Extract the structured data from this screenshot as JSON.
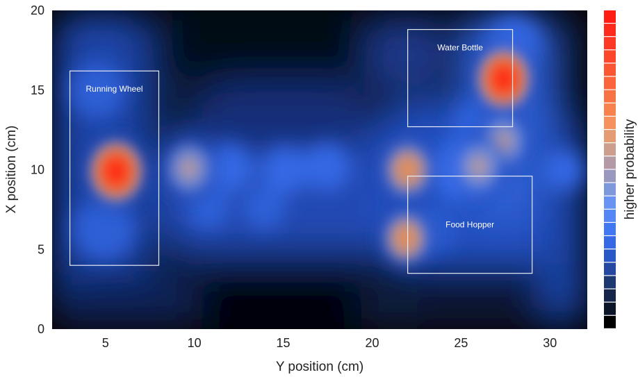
{
  "chart_data": {
    "type": "heatmap",
    "title": "",
    "xlabel": "Y position (cm)",
    "ylabel": "X position (cm)",
    "xlim": [
      2,
      32.1
    ],
    "ylim": [
      0,
      20
    ],
    "x_ticks": [
      5,
      10,
      15,
      20,
      25,
      30
    ],
    "y_ticks": [
      0,
      5,
      10,
      15,
      20
    ],
    "x_tick_labels": [
      "5",
      "10",
      "15",
      "20",
      "25",
      "30"
    ],
    "y_tick_labels": [
      "0",
      "5",
      "10",
      "15",
      "20"
    ],
    "grid": false,
    "colorbar": {
      "label": "higher probability",
      "colors": [
        "#000000",
        "#0c1428",
        "#16264a",
        "#1e3970",
        "#2549a0",
        "#2a58c6",
        "#3468e4",
        "#4277f2",
        "#5486f6",
        "#6893f2",
        "#7e98dc",
        "#9a98be",
        "#b49aa6",
        "#cc9e8e",
        "#e49c74",
        "#f4915c",
        "#f7824e",
        "#f87344",
        "#fa653c",
        "#fb5634",
        "#fc472c",
        "#fd3824",
        "#fe2a1c",
        "#ff1c14"
      ]
    },
    "hotspots": [
      {
        "x": 5.6,
        "y": 9.9,
        "intensity": 1.0
      },
      {
        "x": 27.4,
        "y": 15.7,
        "intensity": 0.95
      },
      {
        "x": 22.0,
        "y": 10.0,
        "intensity": 0.7
      },
      {
        "x": 21.9,
        "y": 5.7,
        "intensity": 0.6
      },
      {
        "x": 9.7,
        "y": 10.1,
        "intensity": 0.55
      },
      {
        "x": 27.4,
        "y": 11.8,
        "intensity": 0.45
      },
      {
        "x": 26.0,
        "y": 10.2,
        "intensity": 0.45
      }
    ],
    "regions": [
      {
        "label": "Running Wheel",
        "x0": 3.0,
        "x1": 8.0,
        "y0": 4.0,
        "y1": 16.2
      },
      {
        "label": "Water Bottle",
        "x0": 22.0,
        "x1": 27.9,
        "y0": 12.7,
        "y1": 18.8
      },
      {
        "label": "Food Hopper",
        "x0": 22.0,
        "x1": 29.0,
        "y0": 3.5,
        "y1": 9.6
      }
    ]
  }
}
